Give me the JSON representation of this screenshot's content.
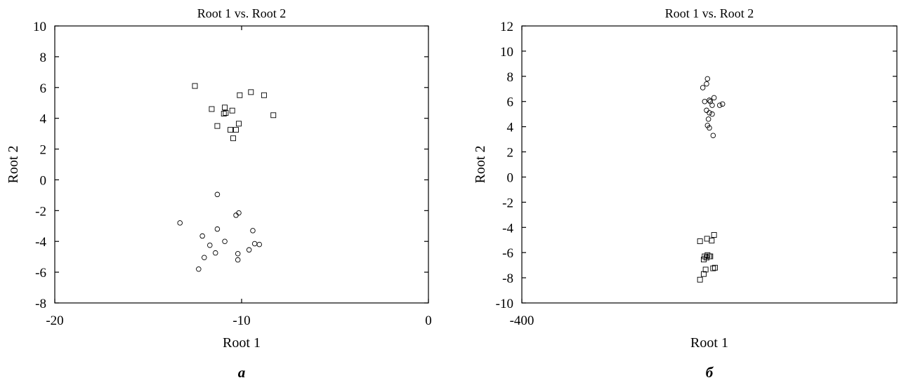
{
  "chart_data": [
    {
      "type": "scatter",
      "title": "Root 1 vs. Root 2",
      "xlabel": "Root 1",
      "ylabel": "Root 2",
      "panel_label": "a",
      "xlim": [
        -20,
        0
      ],
      "ylim": [
        -8,
        10
      ],
      "xticks": [
        "-20",
        "-10",
        "0"
      ],
      "yticks": [
        "10",
        "8",
        "6",
        "4",
        "2",
        "0",
        "-2",
        "-4",
        "-6",
        "-8"
      ],
      "series": [
        {
          "marker": "square",
          "points": [
            [
              -12.5,
              6.1
            ],
            [
              -11.6,
              4.6
            ],
            [
              -10.9,
              4.7
            ],
            [
              -10.95,
              4.3
            ],
            [
              -10.85,
              4.35
            ],
            [
              -10.5,
              4.5
            ],
            [
              -10.1,
              5.5
            ],
            [
              -9.5,
              5.7
            ],
            [
              -8.8,
              5.5
            ],
            [
              -8.3,
              4.2
            ],
            [
              -11.3,
              3.5
            ],
            [
              -10.6,
              3.25
            ],
            [
              -10.3,
              3.25
            ],
            [
              -10.15,
              3.65
            ],
            [
              -10.45,
              2.7
            ]
          ]
        },
        {
          "marker": "circle",
          "points": [
            [
              -11.3,
              -0.95
            ],
            [
              -10.15,
              -2.15
            ],
            [
              -10.3,
              -2.3
            ],
            [
              -13.3,
              -2.8
            ],
            [
              -11.3,
              -3.2
            ],
            [
              -9.4,
              -3.3
            ],
            [
              -12.1,
              -3.65
            ],
            [
              -10.9,
              -4.0
            ],
            [
              -11.7,
              -4.25
            ],
            [
              -9.3,
              -4.15
            ],
            [
              -9.05,
              -4.2
            ],
            [
              -9.6,
              -4.55
            ],
            [
              -11.4,
              -4.75
            ],
            [
              -10.2,
              -4.8
            ],
            [
              -12.0,
              -5.05
            ],
            [
              -10.2,
              -5.2
            ],
            [
              -12.3,
              -5.8
            ]
          ]
        }
      ]
    },
    {
      "type": "scatter",
      "title": "Root 1 vs. Root 2",
      "xlabel": "Root 1",
      "ylabel": "Root 2",
      "panel_label": "б",
      "xlim": [
        -400,
        400
      ],
      "ylim": [
        -10,
        12
      ],
      "xticks": [
        "-400"
      ],
      "yticks": [
        "12",
        "10",
        "8",
        "6",
        "4",
        "2",
        "0",
        "-2",
        "-4",
        "-6",
        "-8",
        "-10"
      ],
      "series": [
        {
          "marker": "circle",
          "points": [
            [
              -4,
              7.8
            ],
            [
              -6,
              7.4
            ],
            [
              -14,
              7.1
            ],
            [
              10,
              6.3
            ],
            [
              -10,
              6.0
            ],
            [
              0,
              6.1
            ],
            [
              2,
              6.0
            ],
            [
              6,
              5.7
            ],
            [
              28,
              5.8
            ],
            [
              22,
              5.7
            ],
            [
              -6,
              5.3
            ],
            [
              0,
              5.1
            ],
            [
              6,
              5.0
            ],
            [
              -2,
              4.6
            ],
            [
              -4,
              4.1
            ],
            [
              0,
              3.9
            ],
            [
              8,
              3.3
            ]
          ]
        },
        {
          "marker": "square",
          "points": [
            [
              10,
              -4.6
            ],
            [
              -5,
              -4.9
            ],
            [
              5,
              -5.05
            ],
            [
              -20,
              -5.1
            ],
            [
              -10,
              -6.3
            ],
            [
              -4,
              -6.2
            ],
            [
              2,
              -6.3
            ],
            [
              -12,
              -6.55
            ],
            [
              -6,
              -6.4
            ],
            [
              0,
              -6.3
            ],
            [
              12,
              -7.2
            ],
            [
              8,
              -7.25
            ],
            [
              -8,
              -7.35
            ],
            [
              -12,
              -7.7
            ],
            [
              -20,
              -8.15
            ]
          ]
        }
      ]
    }
  ]
}
